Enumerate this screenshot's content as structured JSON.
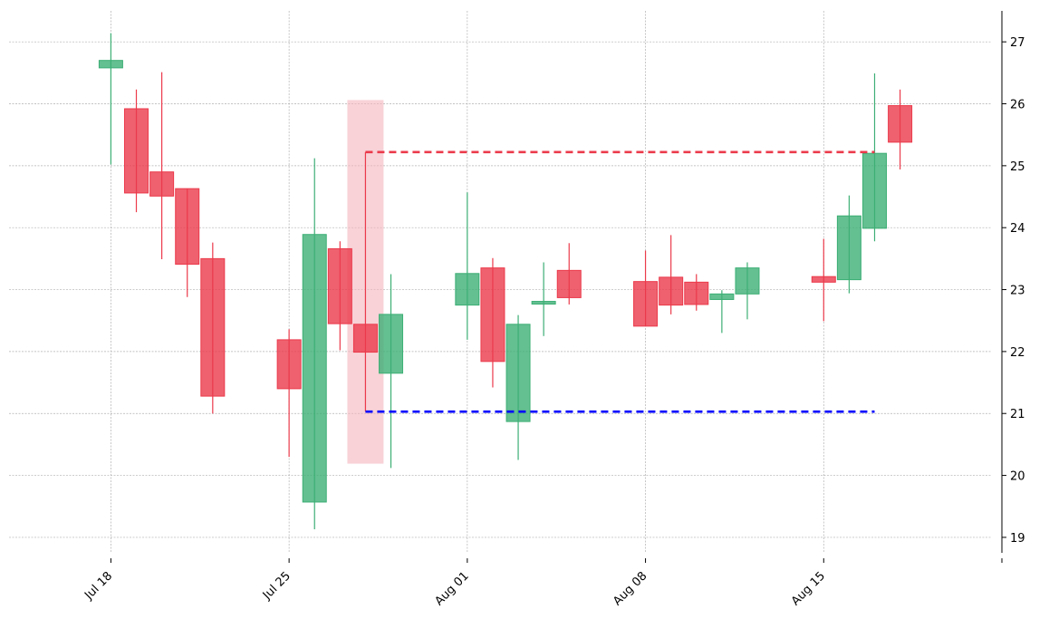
{
  "chart_data": {
    "type": "candlestick",
    "x_ticks": [
      {
        "date": "2022-07-18",
        "label": "Jul 18"
      },
      {
        "date": "2022-07-25",
        "label": "Jul 25"
      },
      {
        "date": "2022-08-01",
        "label": "Aug 01"
      },
      {
        "date": "2022-08-08",
        "label": "Aug 08"
      },
      {
        "date": "2022-08-15",
        "label": "Aug 15"
      },
      {
        "date": "2022-08-22",
        "label": ""
      }
    ],
    "y_ticks": [
      19,
      20,
      21,
      22,
      23,
      24,
      25,
      26,
      27
    ],
    "ylim": [
      18.75,
      27.5
    ],
    "xlim": [
      "2022-07-14",
      "2022-08-22"
    ],
    "grid": true,
    "colors": {
      "up": "#3daf75",
      "down": "#eb3a4b",
      "highlight": "#f4b4bd",
      "support": "#0000ff",
      "resistance": "#eb3a4b"
    },
    "candles": [
      {
        "date": "2022-07-18",
        "open": 26.58,
        "high": 27.14,
        "low": 25.02,
        "close": 26.7
      },
      {
        "date": "2022-07-19",
        "open": 25.92,
        "high": 26.23,
        "low": 24.25,
        "close": 24.56
      },
      {
        "date": "2022-07-20",
        "open": 24.9,
        "high": 26.51,
        "low": 23.49,
        "close": 24.51
      },
      {
        "date": "2022-07-21",
        "open": 24.63,
        "high": 24.63,
        "low": 22.88,
        "close": 23.41
      },
      {
        "date": "2022-07-22",
        "open": 23.5,
        "high": 23.76,
        "low": 21.0,
        "close": 21.28
      },
      {
        "date": "2022-07-25",
        "open": 22.19,
        "high": 22.36,
        "low": 20.3,
        "close": 21.4
      },
      {
        "date": "2022-07-26",
        "open": 19.57,
        "high": 25.12,
        "low": 19.13,
        "close": 23.89
      },
      {
        "date": "2022-07-27",
        "open": 23.66,
        "high": 23.78,
        "low": 22.02,
        "close": 22.45
      },
      {
        "date": "2022-07-28",
        "open": 22.44,
        "high": 25.22,
        "low": 21.03,
        "close": 21.99
      },
      {
        "date": "2022-07-29",
        "open": 21.65,
        "high": 23.25,
        "low": 20.12,
        "close": 22.6
      },
      {
        "date": "2022-08-01",
        "open": 22.75,
        "high": 24.57,
        "low": 22.19,
        "close": 23.26
      },
      {
        "date": "2022-08-02",
        "open": 23.35,
        "high": 23.51,
        "low": 21.42,
        "close": 21.84
      },
      {
        "date": "2022-08-03",
        "open": 20.87,
        "high": 22.59,
        "low": 20.25,
        "close": 22.44
      },
      {
        "date": "2022-08-04",
        "open": 22.78,
        "high": 23.44,
        "low": 22.25,
        "close": 22.81
      },
      {
        "date": "2022-08-05",
        "open": 23.31,
        "high": 23.75,
        "low": 22.76,
        "close": 22.87
      },
      {
        "date": "2022-08-08",
        "open": 23.13,
        "high": 23.63,
        "low": 22.41,
        "close": 22.41
      },
      {
        "date": "2022-08-09",
        "open": 23.2,
        "high": 23.88,
        "low": 22.6,
        "close": 22.75
      },
      {
        "date": "2022-08-10",
        "open": 23.12,
        "high": 23.25,
        "low": 22.66,
        "close": 22.76
      },
      {
        "date": "2022-08-11",
        "open": 22.84,
        "high": 22.99,
        "low": 22.3,
        "close": 22.93
      },
      {
        "date": "2022-08-12",
        "open": 22.93,
        "high": 23.44,
        "low": 22.52,
        "close": 23.35
      },
      {
        "date": "2022-08-15",
        "open": 23.21,
        "high": 23.82,
        "low": 22.49,
        "close": 23.12
      },
      {
        "date": "2022-08-16",
        "open": 23.16,
        "high": 24.52,
        "low": 22.94,
        "close": 24.19
      },
      {
        "date": "2022-08-17",
        "open": 23.99,
        "high": 26.49,
        "low": 23.78,
        "close": 25.2
      },
      {
        "date": "2022-08-18",
        "open": 25.97,
        "high": 26.23,
        "low": 24.94,
        "close": 25.38
      }
    ],
    "highlight": {
      "date": "2022-07-28",
      "ymin": 20.19,
      "ymax": 26.06
    },
    "resistance": {
      "start": "2022-07-28",
      "end": "2022-08-17",
      "y": 25.22
    },
    "support": {
      "start": "2022-07-28",
      "end": "2022-08-17",
      "y": 21.03
    }
  }
}
